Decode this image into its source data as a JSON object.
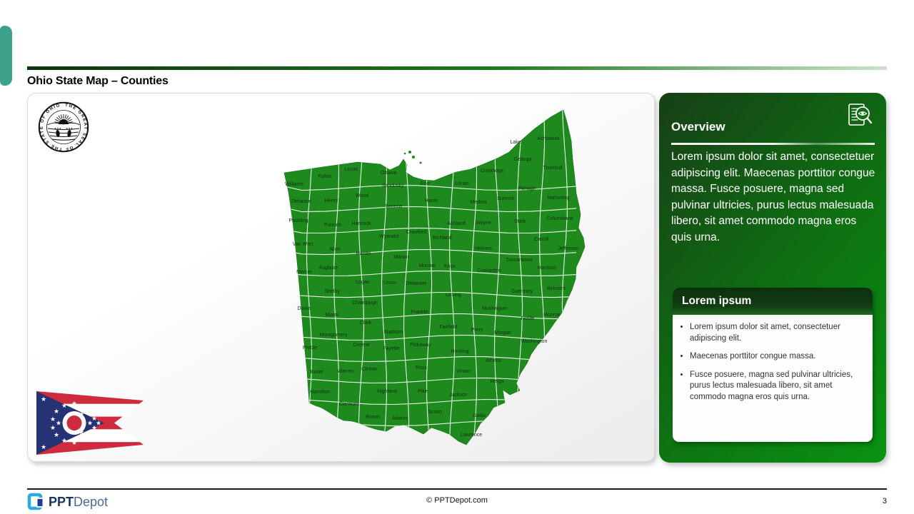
{
  "slide": {
    "title": "Ohio State Map – Counties",
    "page_number": "3",
    "footer_text": "© PPTDepot.com",
    "brand": {
      "bold": "PPT",
      "light": "Depot"
    }
  },
  "sidebar": {
    "title": "Overview",
    "icon": "document-magnifier-icon",
    "paragraph": "Lorem ipsum dolor sit amet, consectetuer adipiscing elit. Maecenas porttitor congue massa. Fusce posuere, magna sed pulvinar ultricies, purus lectus malesuada libero, sit amet commodo magna eros quis urna.",
    "card": {
      "title": "Lorem ipsum",
      "bullets": [
        "Lorem ipsum dolor sit amet, consectetuer adipiscing elit.",
        "Maecenas porttitor congue massa.",
        "Fusce posuere, magna sed pulvinar ultricies, purus lectus malesuada libero, sit amet commodo magna eros quis urna."
      ]
    }
  },
  "map": {
    "state": "Ohio",
    "seal_text": "THE GREAT SEAL OF THE STATE OF OHIO",
    "fill_color": "#1e8a1e",
    "border_color": "#ffffff",
    "label_color": "#143014",
    "counties": [
      [
        "Williams",
        411,
        257
      ],
      [
        "Fulton",
        454,
        246
      ],
      [
        "Lucas",
        491,
        236
      ],
      [
        "Ottawa",
        543,
        241
      ],
      [
        "Sandusky",
        549,
        259
      ],
      [
        "Erie",
        594,
        256
      ],
      [
        "Defiance",
        421,
        281
      ],
      [
        "Henry",
        463,
        280
      ],
      [
        "Wood",
        506,
        273
      ],
      [
        "Seneca",
        550,
        288
      ],
      [
        "Huron",
        603,
        280
      ],
      [
        "Paulding",
        417,
        308
      ],
      [
        "Putnam",
        465,
        314
      ],
      [
        "Hancock",
        505,
        312
      ],
      [
        "Crawford",
        582,
        324
      ],
      [
        "Wyandot",
        544,
        330
      ],
      [
        "Van Wert",
        423,
        341
      ],
      [
        "Allen",
        468,
        348
      ],
      [
        "Hardin",
        508,
        354
      ],
      [
        "Marion",
        561,
        359
      ],
      [
        "Morrow",
        597,
        371
      ],
      [
        "Mercer",
        425,
        380
      ],
      [
        "Auglaize",
        459,
        374
      ],
      [
        "Richland",
        618,
        332
      ],
      [
        "Ashland",
        638,
        312
      ],
      [
        "Wayne",
        676,
        311
      ],
      [
        "Medina",
        669,
        282
      ],
      [
        "Lorain",
        646,
        256
      ],
      [
        "Cuyahoga",
        688,
        238
      ],
      [
        "Lake",
        721,
        198
      ],
      [
        "Geauga",
        731,
        222
      ],
      [
        "Ashtabula",
        767,
        193
      ],
      [
        "Trumbull",
        773,
        234
      ],
      [
        "Portage",
        737,
        263
      ],
      [
        "Summit",
        707,
        277
      ],
      [
        "Mahoning",
        781,
        276
      ],
      [
        "Stark",
        727,
        309
      ],
      [
        "Columbiana",
        783,
        305
      ],
      [
        "Holmes",
        676,
        347
      ],
      [
        "Knox",
        629,
        372
      ],
      [
        "Coshocton",
        684,
        378
      ],
      [
        "Tuscarawas",
        726,
        363
      ],
      [
        "Carroll",
        757,
        334
      ],
      [
        "Jefferson",
        795,
        347
      ],
      [
        "Harrison",
        765,
        374
      ],
      [
        "Logan",
        507,
        394
      ],
      [
        "Union",
        545,
        395
      ],
      [
        "Delaware",
        582,
        396
      ],
      [
        "Shelby",
        464,
        407
      ],
      [
        "Champaign",
        510,
        423
      ],
      [
        "Darke",
        425,
        431
      ],
      [
        "Miami",
        464,
        440
      ],
      [
        "Clark",
        511,
        451
      ],
      [
        "Franklin",
        587,
        436
      ],
      [
        "Madison",
        550,
        464
      ],
      [
        "Licking",
        634,
        412
      ],
      [
        "Guernsey",
        730,
        407
      ],
      [
        "Belmont",
        778,
        403
      ],
      [
        "Muskingum",
        692,
        431
      ],
      [
        "Noble",
        738,
        445
      ],
      [
        "Monroe",
        772,
        440
      ],
      [
        "Montgomery",
        466,
        468
      ],
      [
        "Preble",
        433,
        486
      ],
      [
        "Greene",
        505,
        482
      ],
      [
        "Fayette",
        547,
        487
      ],
      [
        "Pickaway",
        588,
        482
      ],
      [
        "Fairfield",
        627,
        457
      ],
      [
        "Perry",
        667,
        461
      ],
      [
        "Morgan",
        703,
        465
      ],
      [
        "Washington",
        747,
        477
      ],
      [
        "Butler",
        443,
        520
      ],
      [
        "Warren",
        483,
        519
      ],
      [
        "Clinton",
        516,
        516
      ],
      [
        "Ross",
        589,
        514
      ],
      [
        "Hocking",
        643,
        491
      ],
      [
        "Athens",
        690,
        504
      ],
      [
        "Vinton",
        648,
        519
      ],
      [
        "Meigs",
        695,
        533
      ],
      [
        "Hamilton",
        447,
        548
      ],
      [
        "Clermont",
        488,
        565
      ],
      [
        "Highland",
        541,
        547
      ],
      [
        "Pike",
        591,
        547
      ],
      [
        "Jackson",
        641,
        552
      ],
      [
        "Brown",
        521,
        583
      ],
      [
        "Adams",
        559,
        585
      ],
      [
        "Scioto",
        608,
        576
      ],
      [
        "Gallia",
        670,
        581
      ],
      [
        "Lawrence",
        659,
        608
      ]
    ]
  },
  "colors": {
    "accent_teal": "#3da18c",
    "header_rule_dark": "#0d330d",
    "header_rule_light": "#bcd9bc",
    "sidebar_dark": "#173f17",
    "sidebar_bright": "#089311",
    "flag_red": "#ce2b3f",
    "flag_navy": "#253273"
  }
}
